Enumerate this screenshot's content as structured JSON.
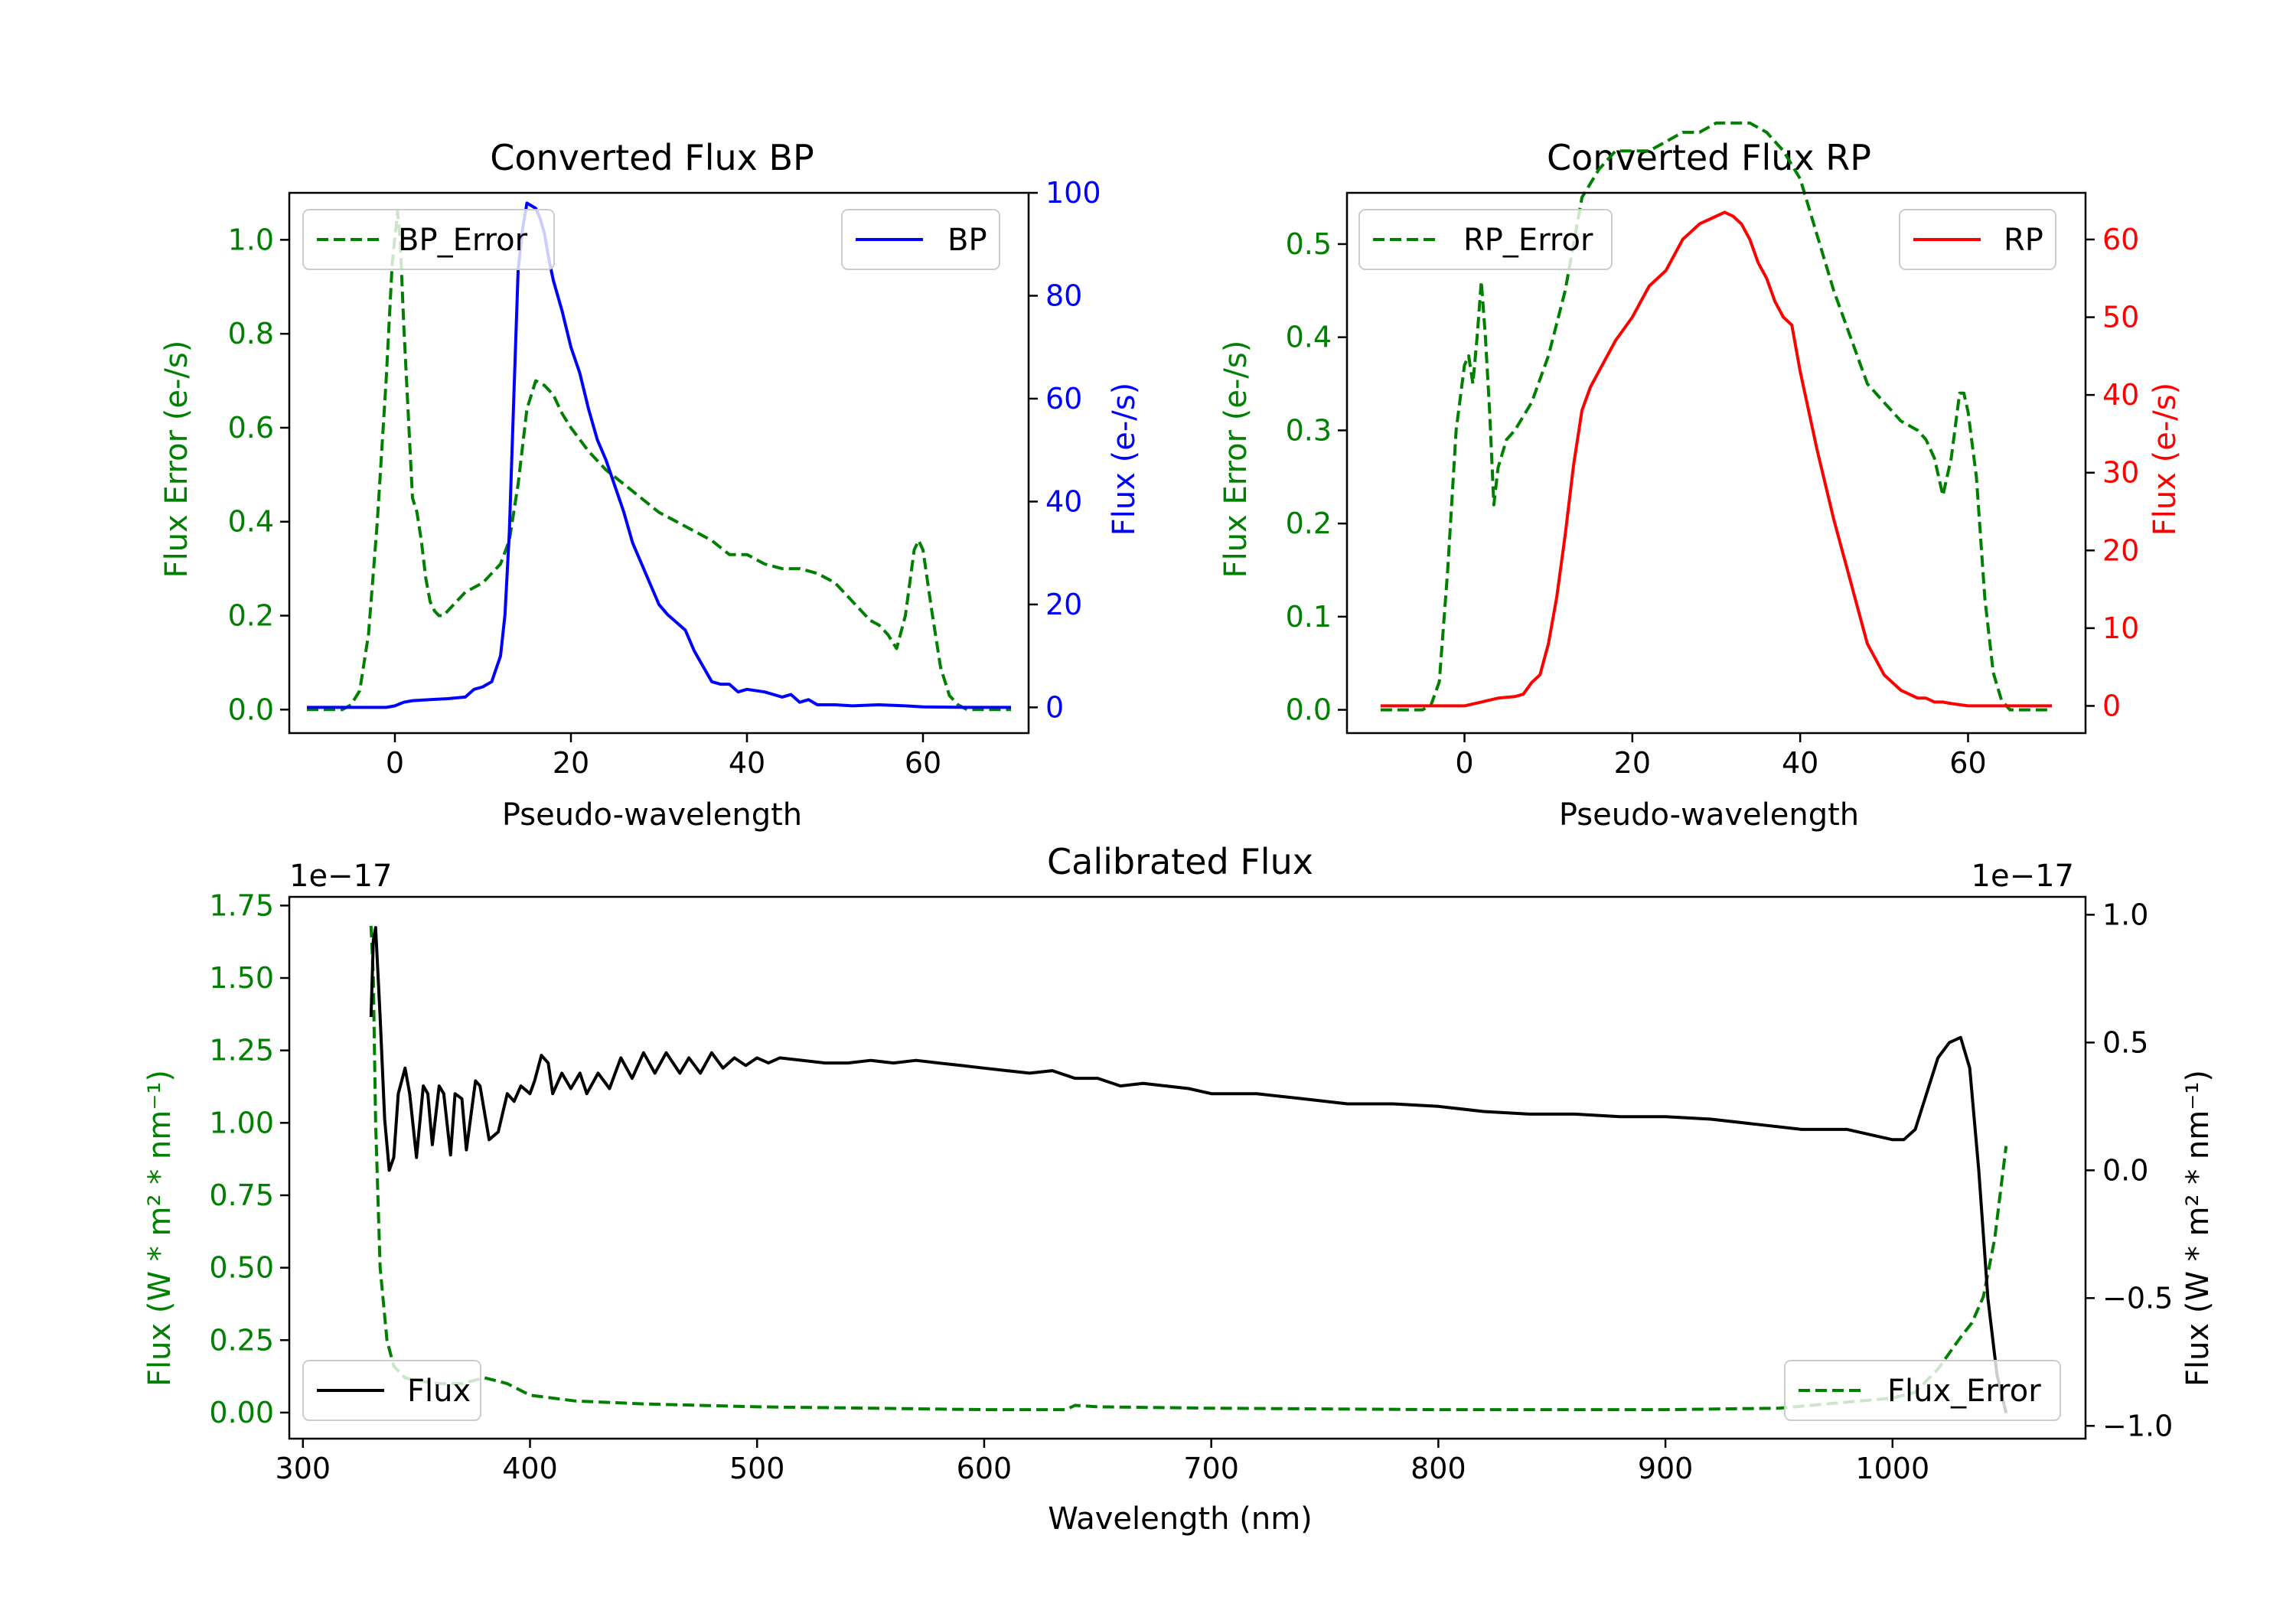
{
  "colors": {
    "green": "#008000",
    "blue": "#0000ff",
    "red": "#ff0000",
    "black": "#000000"
  },
  "chart_data": [
    {
      "id": "bp",
      "type": "line",
      "title": "Converted Flux BP",
      "xlabel": "Pseudo-wavelength",
      "ylabel_left": "Flux Error (e-/s)",
      "ylabel_right": "Flux (e-/s)",
      "xlim": [
        -12,
        72
      ],
      "ylim_left": [
        -0.05,
        1.1
      ],
      "ylim_right": [
        -5,
        100
      ],
      "xticks": [
        "0",
        "20",
        "40",
        "60"
      ],
      "yticks_left": [
        "0.0",
        "0.2",
        "0.4",
        "0.6",
        "0.8",
        "1.0"
      ],
      "yticks_right": [
        "0",
        "20",
        "40",
        "60",
        "80",
        "100"
      ],
      "legend_left": "BP_Error",
      "legend_right": "BP",
      "series_left": {
        "name": "BP_Error",
        "color": "#008000",
        "dash": true,
        "x": [
          -10,
          -6,
          -5,
          -4,
          -3,
          -2,
          -1,
          -0.3,
          0.3,
          0.6,
          1,
          2,
          2.5,
          3,
          3.5,
          4,
          4.5,
          5,
          5.5,
          6,
          7,
          8,
          10,
          12,
          13,
          14,
          15,
          16,
          17,
          18,
          19,
          20,
          22,
          24,
          26,
          28,
          30,
          32,
          34,
          36,
          38,
          40,
          42,
          44,
          46,
          48,
          50,
          52,
          54,
          55,
          56,
          57,
          58,
          59,
          59.5,
          60,
          61,
          62,
          63,
          64,
          65,
          70
        ],
        "y": [
          0.0,
          0.0,
          0.01,
          0.04,
          0.16,
          0.4,
          0.7,
          0.95,
          1.06,
          1.0,
          0.82,
          0.45,
          0.42,
          0.36,
          0.28,
          0.23,
          0.21,
          0.2,
          0.2,
          0.21,
          0.23,
          0.25,
          0.27,
          0.31,
          0.36,
          0.48,
          0.64,
          0.7,
          0.69,
          0.67,
          0.63,
          0.6,
          0.55,
          0.51,
          0.48,
          0.45,
          0.42,
          0.4,
          0.38,
          0.36,
          0.33,
          0.33,
          0.31,
          0.3,
          0.3,
          0.29,
          0.27,
          0.23,
          0.19,
          0.18,
          0.16,
          0.13,
          0.2,
          0.34,
          0.36,
          0.34,
          0.21,
          0.09,
          0.03,
          0.01,
          0.0,
          0.0
        ]
      },
      "series_right": {
        "name": "BP",
        "color": "#0000ff",
        "dash": false,
        "x": [
          -10,
          -5,
          -1,
          0,
          1,
          2,
          4,
          6,
          8,
          9,
          10,
          11,
          12,
          12.5,
          13,
          13.5,
          14,
          14.5,
          15,
          15.5,
          16,
          16.5,
          17,
          17.5,
          18,
          19,
          20,
          21,
          22,
          23,
          24,
          25,
          26,
          27,
          28,
          29,
          30,
          31,
          32,
          33,
          34,
          35,
          36,
          37,
          38,
          39,
          40,
          42,
          44,
          45,
          46,
          47,
          48,
          50,
          52,
          55,
          58,
          60,
          65,
          70
        ],
        "y": [
          0,
          0,
          0,
          0.3,
          1,
          1.3,
          1.5,
          1.7,
          2,
          3.5,
          4,
          5,
          10,
          18,
          34,
          60,
          85,
          93,
          98,
          97.5,
          97,
          95,
          92,
          87,
          83,
          77,
          70,
          65,
          58,
          52,
          48,
          43,
          38,
          32,
          28,
          24,
          20,
          18,
          16.5,
          15,
          11,
          8,
          5,
          4.5,
          4.5,
          3,
          3.5,
          3,
          2,
          2.5,
          1,
          1.5,
          0.5,
          0.5,
          0.3,
          0.5,
          0.3,
          0.1,
          0,
          0
        ]
      }
    },
    {
      "id": "rp",
      "type": "line",
      "title": "Converted Flux RP",
      "xlabel": "Pseudo-wavelength",
      "ylabel_left": "Flux Error (e-/s)",
      "ylabel_right": "Flux (e-/s)",
      "xlim": [
        -14,
        74
      ],
      "ylim_left": [
        -0.025,
        0.555
      ],
      "ylim_right": [
        -3.5,
        66
      ],
      "xticks": [
        "0",
        "20",
        "40",
        "60"
      ],
      "yticks_left": [
        "0.0",
        "0.1",
        "0.2",
        "0.3",
        "0.4",
        "0.5"
      ],
      "yticks_right": [
        "0",
        "10",
        "20",
        "30",
        "40",
        "50",
        "60"
      ],
      "legend_left": "RP_Error",
      "legend_right": "RP",
      "series_left": {
        "name": "RP_Error",
        "color": "#008000",
        "dash": true,
        "x": [
          -10,
          -5,
          -4,
          -3,
          -2,
          -1,
          0,
          0.5,
          1,
          1.5,
          2,
          2.5,
          3,
          3.5,
          4,
          5,
          6,
          8,
          10,
          12,
          13,
          14,
          16,
          18,
          20,
          22,
          24,
          26,
          28,
          30,
          32,
          34,
          36,
          38,
          40,
          42,
          44,
          46,
          48,
          50,
          52,
          54,
          55,
          56,
          57,
          58,
          59,
          59.5,
          60,
          61,
          62,
          63,
          64,
          65,
          70
        ],
        "y": [
          0.0,
          0.0,
          0.005,
          0.03,
          0.15,
          0.3,
          0.37,
          0.38,
          0.35,
          0.4,
          0.46,
          0.4,
          0.32,
          0.22,
          0.26,
          0.29,
          0.3,
          0.33,
          0.38,
          0.45,
          0.5,
          0.55,
          0.58,
          0.6,
          0.6,
          0.6,
          0.61,
          0.62,
          0.62,
          0.63,
          0.63,
          0.63,
          0.62,
          0.6,
          0.57,
          0.51,
          0.45,
          0.4,
          0.35,
          0.33,
          0.31,
          0.3,
          0.29,
          0.27,
          0.23,
          0.27,
          0.34,
          0.34,
          0.32,
          0.25,
          0.12,
          0.04,
          0.01,
          0.0,
          0.0
        ]
      },
      "series_right": {
        "name": "RP",
        "color": "#ff0000",
        "dash": false,
        "x": [
          -10,
          -5,
          0,
          2,
          4,
          6,
          7,
          8,
          9,
          10,
          11,
          12,
          13,
          14,
          15,
          16,
          17,
          18,
          20,
          22,
          24,
          26,
          27,
          28,
          30,
          31,
          32,
          33,
          34,
          35,
          36,
          37,
          38,
          39,
          40,
          42,
          44,
          45,
          46,
          47,
          48,
          50,
          52,
          53,
          54,
          55,
          56,
          57,
          58,
          60,
          62,
          65,
          70
        ],
        "y": [
          0,
          0,
          0,
          0.5,
          1,
          1.2,
          1.5,
          3,
          4,
          8,
          14,
          22,
          31,
          38,
          41,
          43,
          45,
          47,
          50,
          54,
          56,
          60,
          61,
          62,
          63,
          63.5,
          63,
          62,
          60,
          57,
          55,
          52,
          50,
          49,
          43,
          33,
          24,
          20,
          16,
          12,
          8,
          4,
          2,
          1.5,
          1,
          1,
          0.5,
          0.5,
          0.3,
          0,
          0,
          0,
          0
        ]
      }
    },
    {
      "id": "cal",
      "type": "line",
      "title": "Calibrated Flux",
      "xlabel": "Wavelength (nm)",
      "ylabel_left": "Flux (W * m² * nm⁻¹)",
      "ylabel_right": "Flux (W * m² * nm⁻¹)",
      "offset_left": "1e−17",
      "offset_right": "1e−17",
      "xlim": [
        294,
        1085
      ],
      "ylim_left": [
        -0.09,
        1.78
      ],
      "ylim_right": [
        -1.05,
        1.07
      ],
      "xticks": [
        "300",
        "400",
        "500",
        "600",
        "700",
        "800",
        "900",
        "1000"
      ],
      "yticks_left": [
        "0.00",
        "0.25",
        "0.50",
        "0.75",
        "1.00",
        "1.25",
        "1.50",
        "1.75"
      ],
      "yticks_right": [
        "−1.0",
        "−0.5",
        "0.0",
        "0.5",
        "1.0"
      ],
      "legend_left": "Flux",
      "legend_right": "Flux_Error",
      "series_left": {
        "name": "Flux_Error",
        "color": "#008000",
        "dash": true,
        "x": [
          330,
          331,
          332,
          334,
          337,
          340,
          345,
          350,
          360,
          370,
          380,
          390,
          400,
          420,
          450,
          500,
          550,
          600,
          636,
          640,
          650,
          700,
          800,
          900,
          950,
          1000,
          1010,
          1020,
          1030,
          1035,
          1040,
          1045,
          1050
        ],
        "y": [
          1.68,
          1.5,
          1.0,
          0.5,
          0.25,
          0.16,
          0.12,
          0.11,
          0.1,
          0.1,
          0.12,
          0.1,
          0.06,
          0.04,
          0.03,
          0.02,
          0.015,
          0.01,
          0.01,
          0.025,
          0.02,
          0.015,
          0.01,
          0.01,
          0.015,
          0.05,
          0.07,
          0.15,
          0.26,
          0.31,
          0.4,
          0.6,
          0.92
        ]
      },
      "series_right": {
        "name": "Flux",
        "color": "#000000",
        "dash": false,
        "x": [
          330,
          331,
          332,
          334,
          336,
          338,
          340,
          342,
          345,
          347,
          350,
          353,
          355,
          357,
          360,
          362,
          365,
          367,
          370,
          372,
          376,
          378,
          382,
          386,
          390,
          393,
          396,
          400,
          402,
          405,
          408,
          410,
          414,
          418,
          422,
          425,
          430,
          435,
          440,
          445,
          450,
          455,
          460,
          466,
          470,
          475,
          480,
          485,
          490,
          495,
          500,
          505,
          510,
          520,
          530,
          540,
          550,
          560,
          570,
          580,
          590,
          600,
          610,
          620,
          630,
          640,
          650,
          660,
          670,
          680,
          690,
          700,
          720,
          740,
          760,
          780,
          800,
          820,
          840,
          860,
          880,
          900,
          920,
          940,
          960,
          980,
          1000,
          1005,
          1010,
          1015,
          1020,
          1025,
          1030,
          1034,
          1038,
          1042,
          1046,
          1050
        ],
        "y": [
          0.6,
          0.9,
          0.95,
          0.6,
          0.2,
          0.0,
          0.05,
          0.3,
          0.4,
          0.3,
          0.05,
          0.33,
          0.3,
          0.1,
          0.33,
          0.3,
          0.06,
          0.3,
          0.28,
          0.08,
          0.35,
          0.33,
          0.12,
          0.15,
          0.3,
          0.27,
          0.33,
          0.3,
          0.35,
          0.45,
          0.42,
          0.3,
          0.38,
          0.32,
          0.38,
          0.3,
          0.38,
          0.32,
          0.44,
          0.36,
          0.46,
          0.38,
          0.46,
          0.38,
          0.44,
          0.38,
          0.46,
          0.4,
          0.44,
          0.41,
          0.44,
          0.42,
          0.44,
          0.43,
          0.42,
          0.42,
          0.43,
          0.42,
          0.43,
          0.42,
          0.41,
          0.4,
          0.39,
          0.38,
          0.39,
          0.36,
          0.36,
          0.33,
          0.34,
          0.33,
          0.32,
          0.3,
          0.3,
          0.28,
          0.26,
          0.26,
          0.25,
          0.23,
          0.22,
          0.22,
          0.21,
          0.21,
          0.2,
          0.18,
          0.16,
          0.16,
          0.12,
          0.12,
          0.16,
          0.3,
          0.44,
          0.5,
          0.52,
          0.4,
          0.0,
          -0.5,
          -0.8,
          -0.95
        ]
      }
    }
  ]
}
